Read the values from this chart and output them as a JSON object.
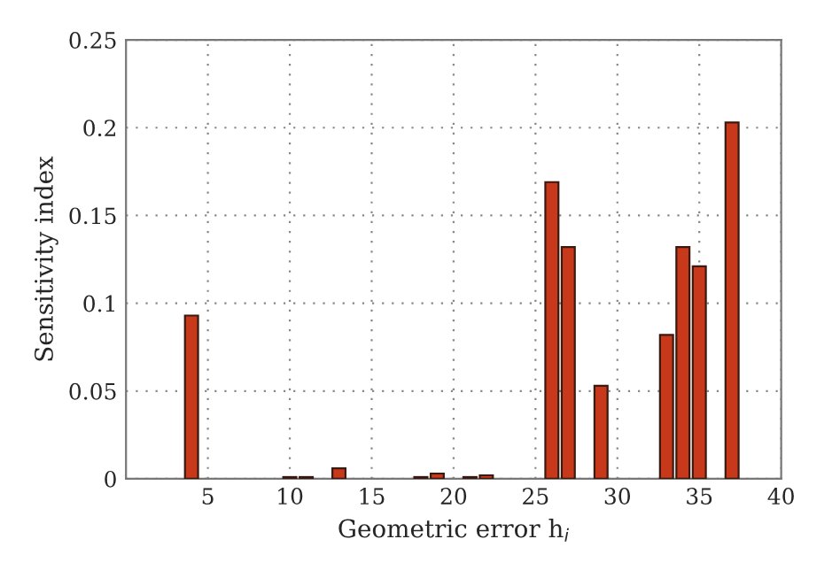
{
  "chart_data": {
    "type": "bar",
    "xlabel": "Geometric error h$_{i}$",
    "ylabel": "Sensitivity index",
    "x": [
      4,
      10,
      11,
      13,
      18,
      19,
      21,
      22,
      26,
      27,
      29,
      33,
      34,
      35,
      37
    ],
    "series": [
      {
        "color": "#c8381a",
        "values": [
          0.093,
          0.001,
          0.001,
          0.006,
          0.001,
          0.003,
          0.001,
          0.002,
          0.169,
          0.132,
          0.053,
          0.082,
          0.132,
          0.121,
          0.203
        ]
      }
    ],
    "xlim": [
      0,
      40
    ],
    "xticks": [
      5,
      10,
      15,
      20,
      25,
      30,
      35,
      40
    ],
    "ylim": [
      0,
      0.25
    ],
    "yticks": [
      0,
      0.05,
      0.1,
      0.15,
      0.2,
      0.25
    ],
    "grid": true
  }
}
